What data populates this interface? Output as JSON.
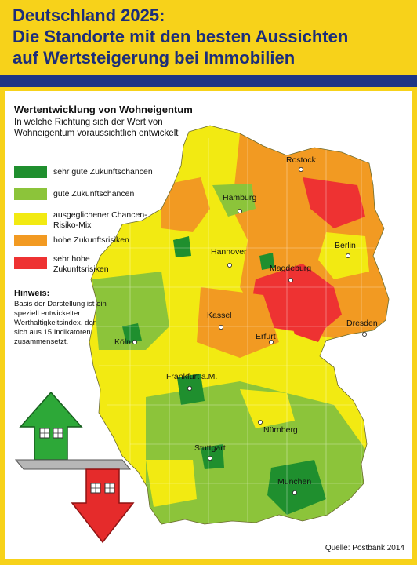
{
  "header": {
    "title_line1": "Deutschland 2025:",
    "title_line2": "Die Standorte mit den besten Aussichten",
    "title_line3": "auf Wertsteigerung bei Immobilien"
  },
  "legend": {
    "title": "Wertentwicklung von Wohneigentum",
    "subtitle": "In welche Richtung sich der Wert von Wohneigentum voraussichtlich entwickelt",
    "items": [
      {
        "label": "sehr gute Zukunftschancen",
        "color": "#1f8f2e"
      },
      {
        "label": "gute Zukunftschancen",
        "color": "#8cc43a"
      },
      {
        "label": "ausgeglichener Chancen-Risiko-Mix",
        "color": "#f2ea12"
      },
      {
        "label": "hohe Zukunftsrisiken",
        "color": "#f29a22"
      },
      {
        "label": "sehr hohe Zukunftsrisiken",
        "color": "#ee3232"
      }
    ]
  },
  "hint": {
    "title": "Hinweis:",
    "text": "Basis der Darstellung ist ein speziell entwickelter Werthaltigkeitsindex, der sich aus 15 Indikatoren zusammensetzt."
  },
  "cities": [
    {
      "name": "Rostock"
    },
    {
      "name": "Hamburg"
    },
    {
      "name": "Berlin"
    },
    {
      "name": "Hannover"
    },
    {
      "name": "Magdeburg"
    },
    {
      "name": "Kassel"
    },
    {
      "name": "Dresden"
    },
    {
      "name": "Köln"
    },
    {
      "name": "Erfurt"
    },
    {
      "name": "Frankfurt a.M."
    },
    {
      "name": "Nürnberg"
    },
    {
      "name": "Stuttgart"
    },
    {
      "name": "München"
    }
  ],
  "source": "Quelle: Postbank 2014",
  "icons": {
    "up": "house-arrow-up-icon",
    "down": "house-arrow-down-icon"
  }
}
